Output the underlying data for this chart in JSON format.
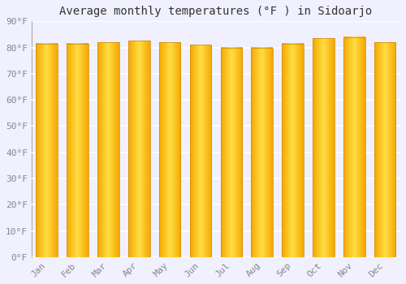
{
  "title": "Average monthly temperatures (°F ) in Sidoarjo",
  "months": [
    "Jan",
    "Feb",
    "Mar",
    "Apr",
    "May",
    "Jun",
    "Jul",
    "Aug",
    "Sep",
    "Oct",
    "Nov",
    "Dec"
  ],
  "values": [
    81.5,
    81.5,
    82.0,
    82.5,
    82.0,
    81.0,
    80.0,
    80.0,
    81.5,
    83.5,
    84.0,
    82.0
  ],
  "ylim": [
    0,
    90
  ],
  "yticks": [
    0,
    10,
    20,
    30,
    40,
    50,
    60,
    70,
    80,
    90
  ],
  "ytick_labels": [
    "0°F",
    "10°F",
    "20°F",
    "30°F",
    "40°F",
    "50°F",
    "60°F",
    "70°F",
    "80°F",
    "90°F"
  ],
  "bar_color_center": "#FFDD44",
  "bar_color_edge": "#F5A800",
  "background_color": "#F0F0FF",
  "grid_color": "#FFFFFF",
  "title_fontsize": 10,
  "tick_fontsize": 8,
  "font_family": "monospace",
  "bar_width": 0.7
}
